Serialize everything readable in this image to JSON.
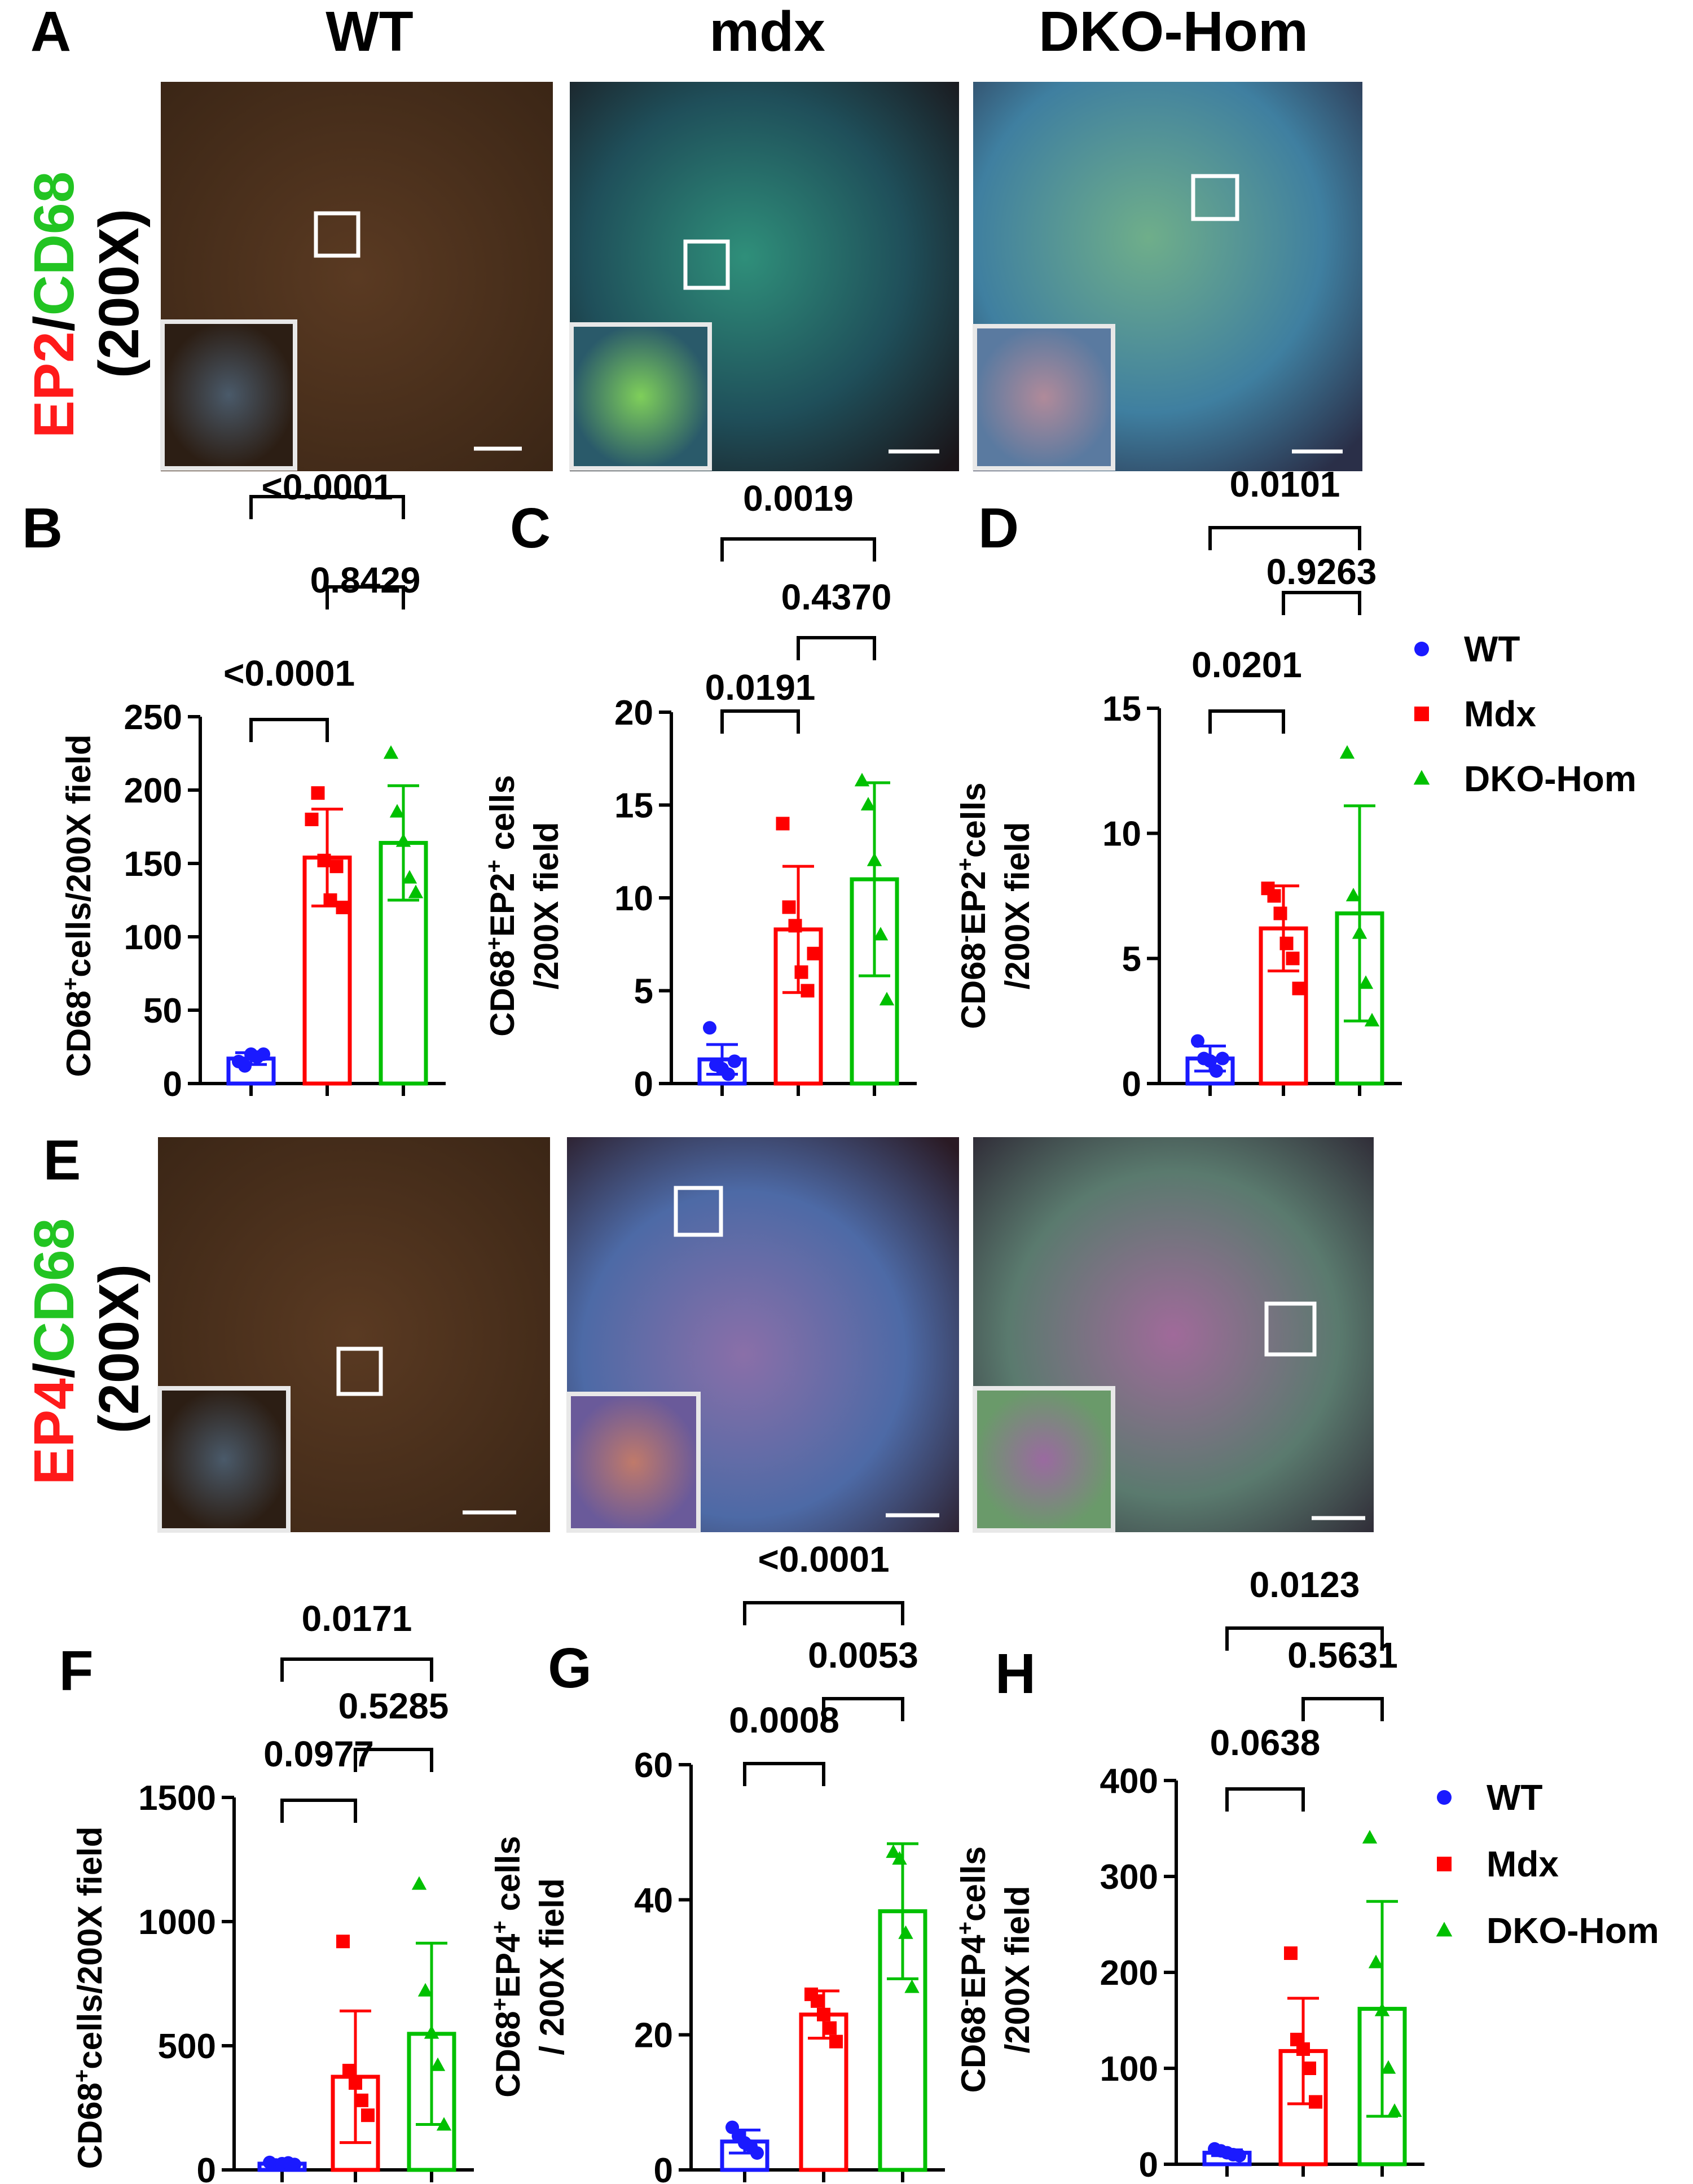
{
  "column_titles": [
    "WT",
    "mdx",
    "DKO-Hom"
  ],
  "row_labels": [
    {
      "panel": "A",
      "marker_red": "EP2",
      "separator": "/",
      "marker_green": "CD68",
      "magnification": "(200X)"
    },
    {
      "panel": "E",
      "marker_red": "EP4",
      "separator": "/",
      "marker_green": "CD68",
      "magnification": "(200X)"
    }
  ],
  "legend": [
    {
      "label": "WT",
      "symbol": "circle",
      "color": "#1a1aff"
    },
    {
      "label": "Mdx",
      "symbol": "square",
      "color": "#ff0000"
    },
    {
      "label": "DKO-Hom",
      "symbol": "triangle",
      "color": "#00c000"
    }
  ],
  "colors": {
    "wt": "#1a1aff",
    "mdx": "#ff0000",
    "dko": "#00c000"
  },
  "chart_data": [
    {
      "panel": "B",
      "type": "bar",
      "categories": [
        "WT",
        "Mdx",
        "DKO-Hom"
      ],
      "ylabel": "CD68⁺cells/200X field",
      "ylabel_parts": [
        "CD68",
        "+",
        "cells/200X field"
      ],
      "ylim": [
        0,
        250
      ],
      "yticks": [
        0,
        50,
        100,
        150,
        200,
        250
      ],
      "means": [
        17,
        154,
        164
      ],
      "sd": [
        4,
        33,
        39
      ],
      "points": [
        [
          15,
          12,
          20,
          18,
          20
        ],
        [
          180,
          198,
          152,
          125,
          148,
          120
        ],
        [
          225,
          185,
          165,
          140,
          130
        ]
      ],
      "comparisons": [
        {
          "from": 0,
          "to": 1,
          "p": "<0.0001"
        },
        {
          "from": 1,
          "to": 2,
          "p": "0.8429"
        },
        {
          "from": 0,
          "to": 2,
          "p": "<0.0001"
        }
      ]
    },
    {
      "panel": "C",
      "type": "bar",
      "categories": [
        "WT",
        "Mdx",
        "DKO-Hom"
      ],
      "ylabel": "CD68⁺EP2⁺ cells /200X field",
      "ylabel_parts": [
        "CD68",
        "+",
        "EP2",
        "+",
        " cells",
        "/200X field"
      ],
      "ylim": [
        0,
        20
      ],
      "yticks": [
        0,
        5,
        10,
        15,
        20
      ],
      "means": [
        1.3,
        8.3,
        11.0
      ],
      "sd": [
        0.8,
        3.4,
        5.2
      ],
      "points": [
        [
          3.0,
          1.0,
          0.8,
          0.5,
          1.2
        ],
        [
          14,
          9.5,
          8.5,
          6,
          5,
          7
        ],
        [
          16.3,
          15,
          12,
          8,
          4.5
        ]
      ],
      "comparisons": [
        {
          "from": 0,
          "to": 1,
          "p": "0.0191"
        },
        {
          "from": 1,
          "to": 2,
          "p": "0.4370"
        },
        {
          "from": 0,
          "to": 2,
          "p": "0.0019"
        }
      ]
    },
    {
      "panel": "D",
      "type": "bar",
      "categories": [
        "WT",
        "Mdx",
        "DKO-Hom"
      ],
      "ylabel": "CD68⁻EP2⁺cells /200X field",
      "ylabel_parts": [
        "CD68",
        "-",
        "EP2",
        "+",
        "cells",
        "/200X field"
      ],
      "ylim": [
        0,
        15
      ],
      "yticks": [
        0,
        5,
        10,
        15
      ],
      "means": [
        1.0,
        6.2,
        6.8
      ],
      "sd": [
        0.5,
        1.7,
        4.3
      ],
      "points": [
        [
          1.7,
          1.0,
          0.9,
          0.5,
          1.0
        ],
        [
          7.8,
          7.5,
          6.8,
          5.6,
          5.0,
          3.8
        ],
        [
          13.2,
          7.5,
          6.0,
          4.0,
          2.5
        ]
      ],
      "comparisons": [
        {
          "from": 0,
          "to": 1,
          "p": "0.0201"
        },
        {
          "from": 1,
          "to": 2,
          "p": "0.9263"
        },
        {
          "from": 0,
          "to": 2,
          "p": "0.0101"
        }
      ]
    },
    {
      "panel": "F",
      "type": "bar",
      "categories": [
        "WT",
        "Mdx",
        "DKO-Hom"
      ],
      "ylabel": "CD68⁺cells/200X field",
      "ylabel_parts": [
        "CD68",
        "+",
        "cells/200X field"
      ],
      "ylim": [
        0,
        1500
      ],
      "yticks": [
        0,
        500,
        1000,
        1500
      ],
      "means": [
        25,
        375,
        548
      ],
      "sd": [
        8,
        265,
        365
      ],
      "points": [
        [
          30,
          20,
          25,
          28,
          22
        ],
        [
          920,
          400,
          350,
          280,
          220
        ],
        [
          1150,
          720,
          550,
          420,
          180
        ]
      ],
      "comparisons": [
        {
          "from": 0,
          "to": 1,
          "p": "0.0977"
        },
        {
          "from": 1,
          "to": 2,
          "p": "0.5285"
        },
        {
          "from": 0,
          "to": 2,
          "p": "0.0171"
        }
      ]
    },
    {
      "panel": "G",
      "type": "bar",
      "categories": [
        "WT",
        "Mdx",
        "DKO-Hom"
      ],
      "ylabel": "CD68⁺EP4⁺ cells / 200X field",
      "ylabel_parts": [
        "CD68",
        "+",
        "EP4",
        "+",
        " cells",
        "/ 200X field"
      ],
      "ylim": [
        0,
        60
      ],
      "yticks": [
        0,
        20,
        40,
        60
      ],
      "means": [
        4.2,
        23,
        38.3
      ],
      "sd": [
        1.7,
        3.5,
        10
      ],
      "points": [
        [
          6.3,
          5.0,
          4.0,
          3.5,
          2.5
        ],
        [
          26,
          25,
          23,
          21,
          19
        ],
        [
          47,
          46,
          35,
          27
        ]
      ],
      "comparisons": [
        {
          "from": 0,
          "to": 1,
          "p": "0.0008"
        },
        {
          "from": 1,
          "to": 2,
          "p": "0.0053"
        },
        {
          "from": 0,
          "to": 2,
          "p": "<0.0001"
        }
      ]
    },
    {
      "panel": "H",
      "type": "bar",
      "categories": [
        "WT",
        "Mdx",
        "DKO-Hom"
      ],
      "ylabel": "CD68⁻EP4⁺cells /200X field",
      "ylabel_parts": [
        "CD68",
        "-",
        "EP4",
        "+",
        "cells",
        "/200X field"
      ],
      "ylim": [
        0,
        400
      ],
      "yticks": [
        0,
        100,
        200,
        300,
        400
      ],
      "means": [
        12,
        118,
        162
      ],
      "sd": [
        3,
        55,
        112
      ],
      "points": [
        [
          16,
          14,
          12,
          10,
          9
        ],
        [
          220,
          130,
          120,
          100,
          65
        ],
        [
          340,
          210,
          160,
          100,
          55
        ]
      ],
      "comparisons": [
        {
          "from": 0,
          "to": 1,
          "p": "0.0638"
        },
        {
          "from": 1,
          "to": 2,
          "p": "0.5631"
        },
        {
          "from": 0,
          "to": 2,
          "p": "0.0123"
        }
      ]
    }
  ]
}
